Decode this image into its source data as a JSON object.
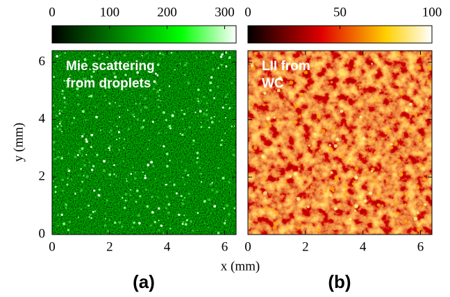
{
  "figure": {
    "xlabel": "x (mm)",
    "ylabel": "y (mm)"
  },
  "chart_data": [
    {
      "type": "heatmap",
      "panel_label": "(a)",
      "annotation": [
        "Mie scattering",
        "from droplets"
      ],
      "colormap": "green",
      "clim": [
        0,
        320
      ],
      "cticks": [
        0,
        100,
        200,
        300
      ],
      "xlim": [
        0,
        6.4
      ],
      "ylim": [
        0,
        6.4
      ],
      "xticks": [
        0,
        2,
        4,
        6
      ],
      "yticks": [
        0,
        2,
        4,
        6
      ],
      "show_ytick_labels": true
    },
    {
      "type": "heatmap",
      "panel_label": "(b)",
      "annotation": [
        "LII from",
        "WC"
      ],
      "colormap": "hot",
      "clim": [
        0,
        100
      ],
      "cticks": [
        0,
        50,
        100
      ],
      "xlim": [
        0,
        6.4
      ],
      "ylim": [
        0,
        6.4
      ],
      "xticks": [
        0,
        2,
        4,
        6
      ],
      "yticks": [
        0,
        2,
        4,
        6
      ],
      "show_ytick_labels": false
    }
  ]
}
